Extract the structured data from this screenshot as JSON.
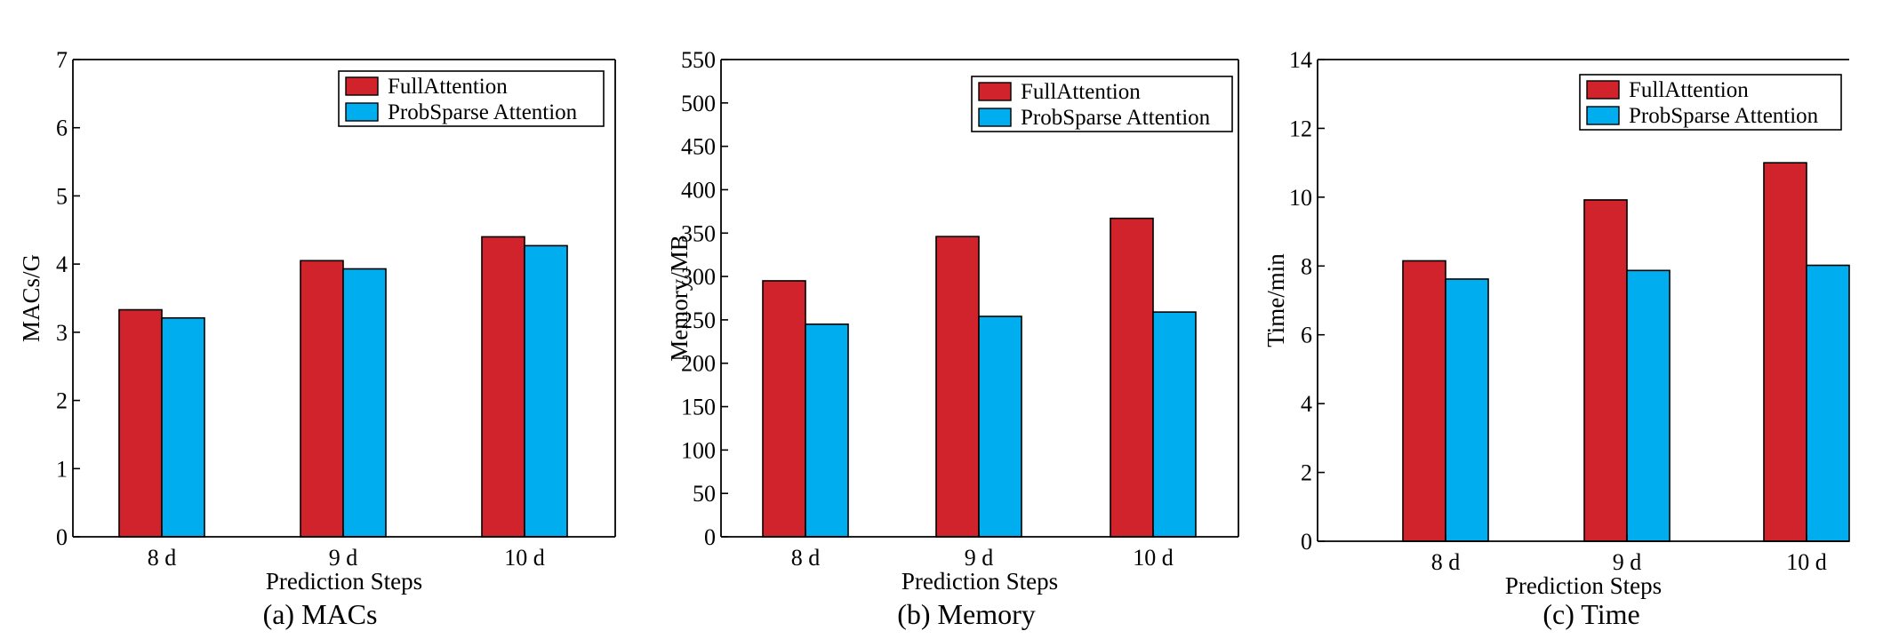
{
  "colors": {
    "full_attention": "#d0232b",
    "probsparse_attention": "#00aeef",
    "axis": "#000000"
  },
  "chart_data": [
    {
      "type": "bar",
      "caption": "(a) MACs",
      "xlabel": "Prediction Steps",
      "ylabel": "MACs/G",
      "categories": [
        "8 d",
        "9 d",
        "10 d"
      ],
      "ylim": [
        0,
        7
      ],
      "yticks": [
        0,
        1,
        2,
        3,
        4,
        5,
        6,
        7
      ],
      "grid": false,
      "legend_position": "top-right",
      "series": [
        {
          "name": "FullAttention",
          "values": [
            3.33,
            4.05,
            4.4
          ]
        },
        {
          "name": "ProbSparse Attention",
          "values": [
            3.21,
            3.93,
            4.27
          ]
        }
      ]
    },
    {
      "type": "bar",
      "caption": "(b) Memory",
      "xlabel": "Prediction Steps",
      "ylabel": "Memory/MB",
      "categories": [
        "8 d",
        "9 d",
        "10 d"
      ],
      "ylim": [
        0,
        550
      ],
      "yticks": [
        0,
        50,
        100,
        150,
        200,
        250,
        300,
        350,
        400,
        450,
        500,
        550
      ],
      "grid": false,
      "legend_position": "top-right",
      "series": [
        {
          "name": "FullAttention",
          "values": [
            295,
            346,
            367
          ]
        },
        {
          "name": "ProbSparse Attention",
          "values": [
            245,
            254,
            259
          ]
        }
      ]
    },
    {
      "type": "bar",
      "caption": "(c) Time",
      "xlabel": "Prediction Steps",
      "ylabel": "Time/min",
      "categories": [
        "8 d",
        "9 d",
        "10 d"
      ],
      "ylim": [
        0,
        14
      ],
      "yticks": [
        0,
        2,
        4,
        6,
        8,
        10,
        12,
        14
      ],
      "grid": false,
      "legend_position": "top-right",
      "series": [
        {
          "name": "FullAttention",
          "values": [
            8.15,
            9.92,
            11.0
          ]
        },
        {
          "name": "ProbSparse Attention",
          "values": [
            7.62,
            7.87,
            8.02
          ]
        }
      ]
    }
  ]
}
